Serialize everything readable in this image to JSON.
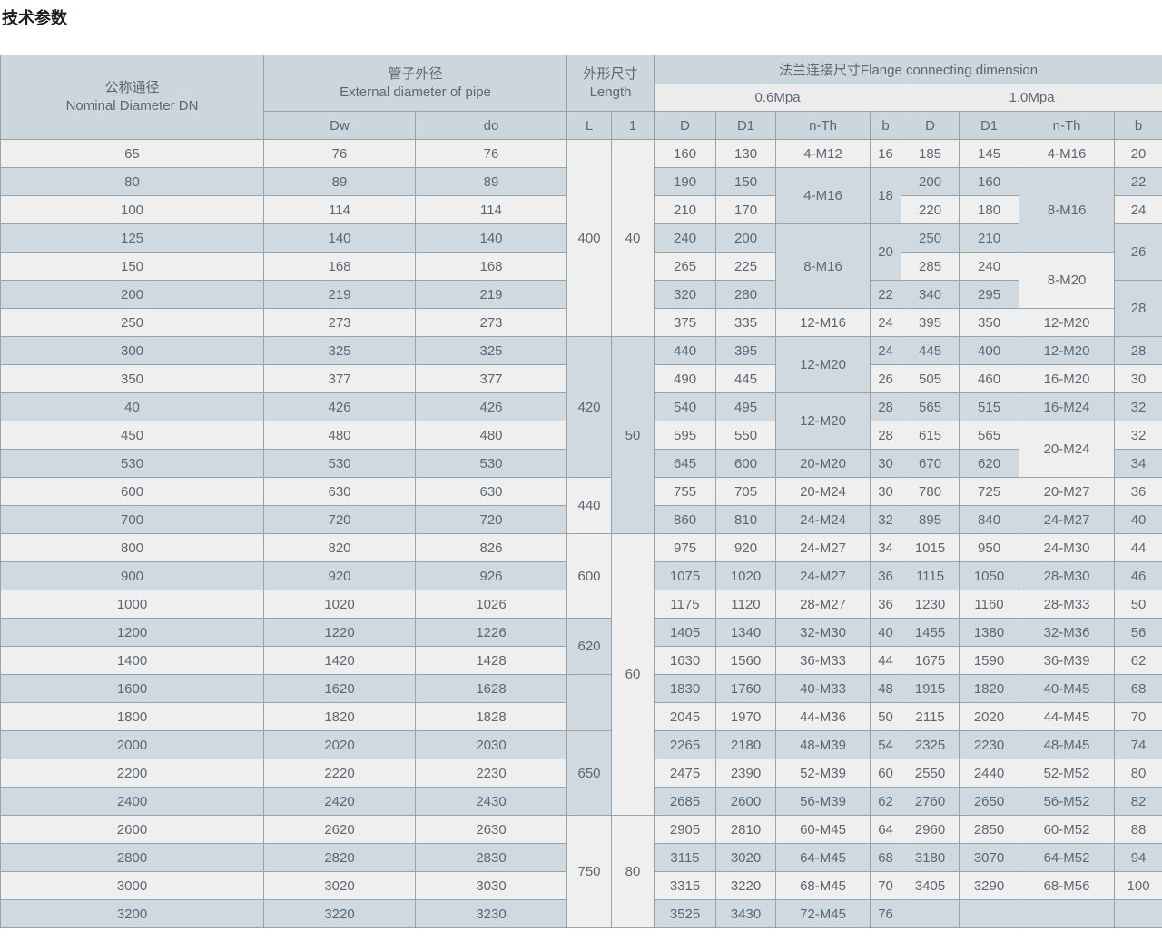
{
  "page_title": "技术参数",
  "colors": {
    "row_light": "#efefef",
    "row_blue": "#d0d9e0",
    "header_blue": "#ccd6dd",
    "header_light": "#ececec",
    "border": "#9aa2a9",
    "text": "#5d6771",
    "title_text": "#1b1b1b"
  },
  "table": {
    "header": {
      "dn_zh": "公称通径",
      "dn_en": "Nominal Diameter DN",
      "pipe_zh": "管子外径",
      "pipe_en": "External diameter of pipe",
      "pipe_col1": "Dw",
      "pipe_col2": "do",
      "len_zh": "外形尺寸",
      "len_en": "Length",
      "len_col1": "L",
      "len_col2": "1",
      "flange_title": "法兰连接尺寸Flange connecting dimension",
      "p06": "0.6Mpa",
      "p10": "1.0Mpa",
      "c_d": "D",
      "c_d1": "D1",
      "c_nth": "n-Th",
      "c_b": "b"
    },
    "rows": [
      {
        "bg": "l",
        "cells": [
          "65",
          "76",
          "76",
          {
            "v": "400",
            "rs": 7,
            "bg": "l"
          },
          {
            "v": "40",
            "rs": 7,
            "bg": "l"
          },
          "160",
          "130",
          "4-M12",
          "16",
          "185",
          "145",
          "4-M16",
          "20"
        ]
      },
      {
        "bg": "b",
        "cells": [
          "80",
          "89",
          "89",
          "190",
          "150",
          {
            "v": "4-M16",
            "rs": 2,
            "bg": "b"
          },
          {
            "v": "18",
            "rs": 2,
            "bg": "b"
          },
          "200",
          "160",
          {
            "v": "8-M16",
            "rs": 3,
            "bg": "b"
          },
          "22"
        ]
      },
      {
        "bg": "l",
        "cells": [
          "100",
          "114",
          "114",
          "210",
          "170",
          "220",
          "180",
          "24"
        ]
      },
      {
        "bg": "b",
        "cells": [
          "125",
          "140",
          "140",
          "240",
          "200",
          {
            "v": "8-M16",
            "rs": 3,
            "bg": "b"
          },
          {
            "v": "20",
            "rs": 2,
            "bg": "b"
          },
          "250",
          "210",
          {
            "v": "26",
            "rs": 2,
            "bg": "b"
          }
        ]
      },
      {
        "bg": "l",
        "cells": [
          "150",
          "168",
          "168",
          "265",
          "225",
          "285",
          "240",
          {
            "v": "8-M20",
            "rs": 2,
            "bg": "l"
          }
        ]
      },
      {
        "bg": "b",
        "cells": [
          "200",
          "219",
          "219",
          "320",
          "280",
          "22",
          "340",
          "295",
          {
            "v": "28",
            "rs": 2,
            "bg": "b"
          }
        ]
      },
      {
        "bg": "l",
        "cells": [
          "250",
          "273",
          "273",
          "375",
          "335",
          "12-M16",
          "24",
          "395",
          "350",
          "12-M20"
        ]
      },
      {
        "bg": "b",
        "cells": [
          "300",
          "325",
          "325",
          {
            "v": "420",
            "rs": 5,
            "bg": "b"
          },
          {
            "v": "50",
            "rs": 7,
            "bg": "b"
          },
          "440",
          "395",
          {
            "v": "12-M20",
            "rs": 2,
            "bg": "b"
          },
          "24",
          "445",
          "400",
          "12-M20",
          "28"
        ]
      },
      {
        "bg": "l",
        "cells": [
          "350",
          "377",
          "377",
          "490",
          "445",
          "26",
          "505",
          "460",
          "16-M20",
          "30"
        ]
      },
      {
        "bg": "b",
        "cells": [
          "40",
          "426",
          "426",
          "540",
          "495",
          {
            "v": "12-M20",
            "rs": 2,
            "bg": "b"
          },
          "28",
          "565",
          "515",
          "16-M24",
          "32"
        ]
      },
      {
        "bg": "l",
        "cells": [
          "450",
          "480",
          "480",
          "595",
          "550",
          "28",
          "615",
          "565",
          {
            "v": "20-M24",
            "rs": 2,
            "bg": "l"
          },
          "32"
        ]
      },
      {
        "bg": "b",
        "cells": [
          "530",
          "530",
          "530",
          "645",
          "600",
          "20-M20",
          "30",
          "670",
          "620",
          "34"
        ]
      },
      {
        "bg": "l",
        "cells": [
          "600",
          "630",
          "630",
          {
            "v": "440",
            "rs": 2,
            "bg": "l"
          },
          "755",
          "705",
          "20-M24",
          "30",
          "780",
          "725",
          "20-M27",
          "36"
        ]
      },
      {
        "bg": "b",
        "cells": [
          "700",
          "720",
          "720",
          "860",
          "810",
          "24-M24",
          "32",
          "895",
          "840",
          "24-M27",
          "40"
        ]
      },
      {
        "bg": "l",
        "cells": [
          "800",
          "820",
          "826",
          {
            "v": "600",
            "rs": 3,
            "bg": "l"
          },
          {
            "v": "60",
            "rs": 10,
            "bg": "l"
          },
          "975",
          "920",
          "24-M27",
          "34",
          "1015",
          "950",
          "24-M30",
          "44"
        ]
      },
      {
        "bg": "b",
        "cells": [
          "900",
          "920",
          "926",
          "1075",
          "1020",
          "24-M27",
          "36",
          "1115",
          "1050",
          "28-M30",
          "46"
        ]
      },
      {
        "bg": "l",
        "cells": [
          "1000",
          "1020",
          "1026",
          "1175",
          "1120",
          "28-M27",
          "36",
          "1230",
          "1160",
          "28-M33",
          "50"
        ]
      },
      {
        "bg": "b",
        "cells": [
          "1200",
          "1220",
          "1226",
          {
            "v": "620",
            "rs": 2,
            "bg": "b"
          },
          "1405",
          "1340",
          "32-M30",
          "40",
          "1455",
          "1380",
          "32-M36",
          "56"
        ]
      },
      {
        "bg": "l",
        "cells": [
          "1400",
          "1420",
          "1428",
          "1630",
          "1560",
          "36-M33",
          "44",
          "1675",
          "1590",
          "36-M39",
          "62"
        ]
      },
      {
        "bg": "b",
        "cells": [
          "1600",
          "1620",
          "1628",
          {
            "v": "",
            "rs": 2,
            "bg": "b"
          },
          "1830",
          "1760",
          "40-M33",
          "48",
          "1915",
          "1820",
          "40-M45",
          "68"
        ]
      },
      {
        "bg": "l",
        "cells": [
          "1800",
          "1820",
          "1828",
          "2045",
          "1970",
          "44-M36",
          "50",
          "2115",
          "2020",
          "44-M45",
          "70"
        ]
      },
      {
        "bg": "b",
        "cells": [
          "2000",
          "2020",
          "2030",
          {
            "v": "650",
            "rs": 3,
            "bg": "b"
          },
          "2265",
          "2180",
          "48-M39",
          "54",
          "2325",
          "2230",
          "48-M45",
          "74"
        ]
      },
      {
        "bg": "l",
        "cells": [
          "2200",
          "2220",
          "2230",
          "2475",
          "2390",
          "52-M39",
          "60",
          "2550",
          "2440",
          "52-M52",
          "80"
        ]
      },
      {
        "bg": "b",
        "cells": [
          "2400",
          "2420",
          "2430",
          "2685",
          "2600",
          "56-M39",
          "62",
          "2760",
          "2650",
          "56-M52",
          "82"
        ]
      },
      {
        "bg": "l",
        "cells": [
          "2600",
          "2620",
          "2630",
          {
            "v": "750",
            "rs": 4,
            "bg": "l"
          },
          {
            "v": "80",
            "rs": 4,
            "bg": "l"
          },
          "2905",
          "2810",
          "60-M45",
          "64",
          "2960",
          "2850",
          "60-M52",
          "88"
        ]
      },
      {
        "bg": "b",
        "cells": [
          "2800",
          "2820",
          "2830",
          "3115",
          "3020",
          "64-M45",
          "68",
          "3180",
          "3070",
          "64-M52",
          "94"
        ]
      },
      {
        "bg": "l",
        "cells": [
          "3000",
          "3020",
          "3030",
          "3315",
          "3220",
          "68-M45",
          "70",
          "3405",
          "3290",
          "68-M56",
          "100"
        ]
      },
      {
        "bg": "b",
        "cells": [
          "3200",
          "3220",
          "3230",
          "3525",
          "3430",
          "72-M45",
          "76",
          "",
          "",
          "",
          ""
        ]
      }
    ]
  }
}
